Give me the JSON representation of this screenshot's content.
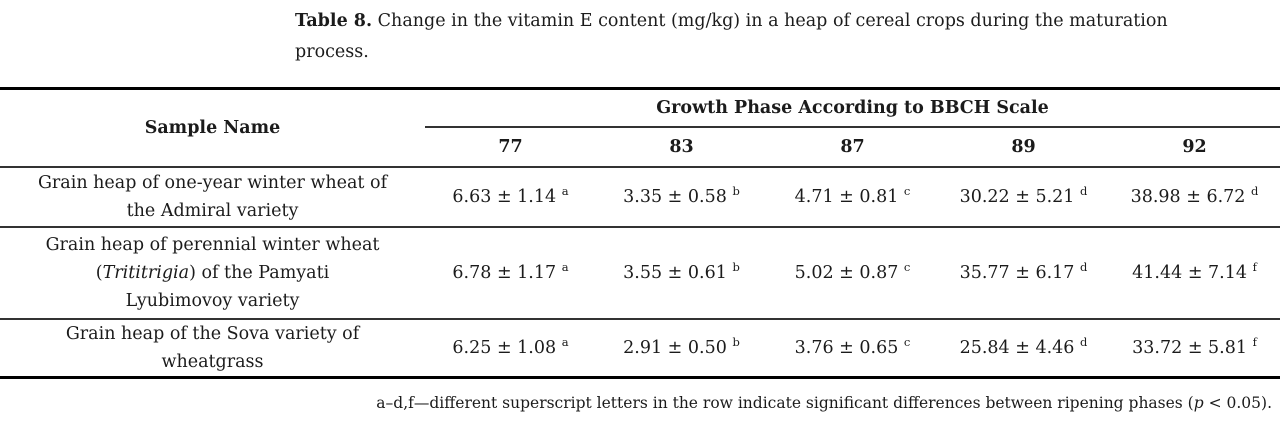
{
  "caption": {
    "label": "Table 8.",
    "lines": [
      "Change in the vitamin E content (mg/kg) in a heap of cereal crops during the maturation",
      "process."
    ]
  },
  "table": {
    "sample_col_header": "Sample Name",
    "group_header": "Growth Phase According to BBCH Scale",
    "phases": [
      "77",
      "83",
      "87",
      "89",
      "92"
    ],
    "rows": [
      {
        "name_lines": [
          [
            {
              "t": "Grain heap of one-year winter wheat of"
            }
          ],
          [
            {
              "t": "the Admiral variety"
            }
          ]
        ],
        "values": [
          {
            "v": "6.63 ± 1.14",
            "sup": "a"
          },
          {
            "v": "3.35 ± 0.58",
            "sup": "b"
          },
          {
            "v": "4.71 ± 0.81",
            "sup": "c"
          },
          {
            "v": "30.22 ± 5.21",
            "sup": "d"
          },
          {
            "v": "38.98 ± 6.72",
            "sup": "d"
          }
        ]
      },
      {
        "name_lines": [
          [
            {
              "t": "Grain heap of perennial winter wheat"
            }
          ],
          [
            {
              "t": "("
            },
            {
              "t": "Trititrigia",
              "i": true
            },
            {
              "t": ") of the Pamyati"
            }
          ],
          [
            {
              "t": "Lyubimovoy variety"
            }
          ]
        ],
        "values": [
          {
            "v": "6.78 ± 1.17",
            "sup": "a"
          },
          {
            "v": "3.55 ± 0.61",
            "sup": "b"
          },
          {
            "v": "5.02 ± 0.87",
            "sup": "c"
          },
          {
            "v": "35.77 ± 6.17",
            "sup": "d"
          },
          {
            "v": "41.44 ± 7.14",
            "sup": "f"
          }
        ]
      },
      {
        "name_lines": [
          [
            {
              "t": "Grain heap of the Sova variety of"
            }
          ],
          [
            {
              "t": "wheatgrass"
            }
          ]
        ],
        "values": [
          {
            "v": "6.25 ± 1.08",
            "sup": "a"
          },
          {
            "v": "2.91 ± 0.50",
            "sup": "b"
          },
          {
            "v": "3.76 ± 0.65",
            "sup": "c"
          },
          {
            "v": "25.84 ± 4.46",
            "sup": "d"
          },
          {
            "v": "33.72 ± 5.81",
            "sup": "f"
          }
        ]
      }
    ]
  },
  "footnote": {
    "parts": [
      {
        "t": "a–d,f—different superscript letters in the row indicate significant differences between ripening phases (",
        "i": false
      },
      {
        "t": "p",
        "i": true
      },
      {
        "t": " < 0.05).",
        "i": false
      }
    ]
  }
}
